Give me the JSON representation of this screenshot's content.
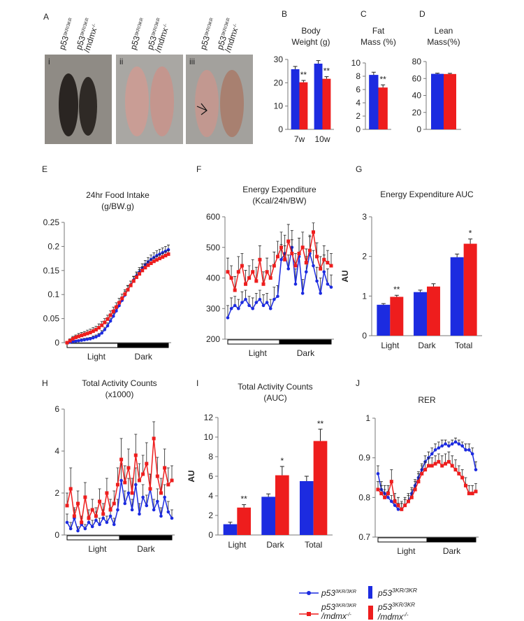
{
  "genotypes": [
    {
      "base": "p53",
      "sup": "3KR/3KR"
    },
    {
      "base": "p53",
      "sup": "3KR/3KR",
      "line2": "/mdmx",
      "line2_sup": "-/-"
    }
  ],
  "photo_panel": {
    "letter": "A",
    "photos": [
      "i",
      "ii",
      "iii"
    ]
  },
  "chart_data": [
    {
      "letter": "B",
      "type": "bar",
      "title": [
        "Body",
        "Weight (g)"
      ],
      "categories": [
        "7w",
        "10w"
      ],
      "series": [
        {
          "color": "#1c2be0",
          "values": [
            25.8,
            28.2
          ],
          "errors": [
            1.2,
            1.3
          ]
        },
        {
          "color": "#ee1d1d",
          "values": [
            20.2,
            21.7
          ],
          "errors": [
            0.8,
            0.9
          ]
        }
      ],
      "significance": [
        "**",
        "**"
      ],
      "ylim": [
        0,
        30
      ],
      "yticks": [
        0,
        10,
        20,
        30
      ]
    },
    {
      "letter": "C",
      "type": "bar",
      "title": [
        "Fat",
        "Mass (%)"
      ],
      "categories": [
        null
      ],
      "series": [
        {
          "color": "#1c2be0",
          "values": [
            8.2
          ],
          "errors": [
            0.4
          ]
        },
        {
          "color": "#ee1d1d",
          "values": [
            6.3
          ],
          "errors": [
            0.4
          ]
        }
      ],
      "significance": [
        "**"
      ],
      "ylim": [
        0,
        10
      ],
      "yticks": [
        0,
        2,
        4,
        6,
        8,
        10
      ]
    },
    {
      "letter": "D",
      "type": "bar",
      "title": [
        "Lean",
        "Mass(%)"
      ],
      "categories": [
        null
      ],
      "series": [
        {
          "color": "#1c2be0",
          "values": [
            65.5
          ],
          "errors": [
            0.8
          ]
        },
        {
          "color": "#ee1d1d",
          "values": [
            65.3
          ],
          "errors": [
            0.8
          ]
        }
      ],
      "ylim": [
        0,
        80
      ],
      "yticks": [
        0,
        20,
        40,
        60,
        80
      ]
    },
    {
      "letter": "E",
      "type": "line",
      "title": [
        "24hr Food Intake",
        "(g/BW.g)"
      ],
      "phase_labels": [
        "Light",
        "Dark"
      ],
      "ylim": [
        0,
        0.25
      ],
      "yticks": [
        0,
        0.05,
        0.1,
        0.15,
        0.2,
        0.25
      ],
      "series": [
        {
          "color": "#1c2be0",
          "marker": "circle",
          "values": [
            0,
            0.001,
            0.002,
            0.003,
            0.004,
            0.005,
            0.006,
            0.007,
            0.008,
            0.01,
            0.012,
            0.015,
            0.02,
            0.027,
            0.035,
            0.045,
            0.055,
            0.066,
            0.077,
            0.088,
            0.099,
            0.11,
            0.12,
            0.13,
            0.139,
            0.147,
            0.155,
            0.162,
            0.168,
            0.173,
            0.177,
            0.181,
            0.184,
            0.187,
            0.19,
            0.193
          ],
          "errors": [
            0.002,
            0.002,
            0.002,
            0.002,
            0.002,
            0.003,
            0.003,
            0.003,
            0.003,
            0.004,
            0.004,
            0.004,
            0.005,
            0.005,
            0.006,
            0.006,
            0.006,
            0.007,
            0.007,
            0.007,
            0.008,
            0.008,
            0.008,
            0.008,
            0.008,
            0.009,
            0.009,
            0.009,
            0.009,
            0.009,
            0.01,
            0.01,
            0.01,
            0.01,
            0.01,
            0.01
          ]
        },
        {
          "color": "#ee1d1d",
          "marker": "square",
          "values": [
            0,
            0.004,
            0.008,
            0.011,
            0.013,
            0.015,
            0.017,
            0.019,
            0.021,
            0.024,
            0.027,
            0.031,
            0.036,
            0.042,
            0.049,
            0.057,
            0.065,
            0.074,
            0.083,
            0.092,
            0.101,
            0.11,
            0.119,
            0.128,
            0.136,
            0.143,
            0.15,
            0.156,
            0.161,
            0.165,
            0.169,
            0.172,
            0.175,
            0.178,
            0.181,
            0.184
          ],
          "errors": [
            0.003,
            0.004,
            0.005,
            0.005,
            0.006,
            0.006,
            0.006,
            0.007,
            0.007,
            0.007,
            0.007,
            0.008,
            0.008,
            0.008,
            0.008,
            0.009,
            0.009,
            0.009,
            0.009,
            0.009,
            0.009,
            0.009,
            0.009,
            0.009,
            0.009,
            0.009,
            0.008,
            0.008,
            0.008,
            0.008,
            0.008,
            0.008,
            0.008,
            0.008,
            0.008,
            0.008
          ]
        }
      ]
    },
    {
      "letter": "F",
      "type": "line",
      "title": [
        "Energy Expenditure",
        "(Kcal/24h/BW)"
      ],
      "phase_labels": [
        "Light",
        "Dark"
      ],
      "ylim": [
        200,
        600
      ],
      "yticks": [
        200,
        300,
        400,
        500,
        600
      ],
      "series": [
        {
          "color": "#1c2be0",
          "marker": "circle",
          "values": [
            270,
            300,
            310,
            300,
            320,
            330,
            310,
            300,
            320,
            330,
            310,
            320,
            300,
            330,
            340,
            460,
            480,
            430,
            500,
            380,
            470,
            350,
            420,
            480,
            440,
            390,
            350,
            420,
            380,
            370
          ],
          "errors": [
            40,
            35,
            30,
            30,
            35,
            30,
            30,
            35,
            30,
            30,
            35,
            30,
            30,
            40,
            35,
            50,
            60,
            45,
            55,
            50,
            60,
            45,
            50,
            55,
            50,
            45,
            50,
            55,
            50,
            40
          ]
        },
        {
          "color": "#ee1d1d",
          "marker": "square",
          "values": [
            420,
            400,
            360,
            420,
            440,
            380,
            400,
            420,
            390,
            460,
            380,
            420,
            400,
            440,
            470,
            500,
            460,
            520,
            480,
            440,
            480,
            500,
            450,
            490,
            550,
            470,
            430,
            460,
            450,
            440
          ],
          "errors": [
            45,
            40,
            45,
            50,
            40,
            45,
            40,
            40,
            45,
            45,
            40,
            45,
            40,
            45,
            50,
            50,
            45,
            55,
            45,
            40,
            50,
            50,
            45,
            50,
            30,
            45,
            40,
            45,
            40,
            40
          ]
        }
      ]
    },
    {
      "letter": "G",
      "type": "bar",
      "title": [
        "Energy Expenditure AUC"
      ],
      "ylabel": "AU",
      "categories": [
        "Light",
        "Dark",
        "Total"
      ],
      "series": [
        {
          "color": "#1c2be0",
          "values": [
            0.78,
            1.1,
            1.98
          ],
          "errors": [
            0.03,
            0.05,
            0.08
          ]
        },
        {
          "color": "#ee1d1d",
          "values": [
            0.98,
            1.24,
            2.32
          ],
          "errors": [
            0.04,
            0.07,
            0.12
          ]
        }
      ],
      "significance": [
        "**",
        null,
        "*"
      ],
      "ylim": [
        0,
        3
      ],
      "yticks": [
        0,
        1,
        2,
        3
      ]
    },
    {
      "letter": "H",
      "type": "line",
      "title": [
        "Total Activity Counts",
        "(x1000)"
      ],
      "phase_labels": [
        "Light",
        "Dark"
      ],
      "ylim": [
        0,
        6
      ],
      "yticks": [
        0,
        2,
        4,
        6
      ],
      "series": [
        {
          "color": "#1c2be0",
          "marker": "circle",
          "values": [
            0.6,
            0.3,
            0.8,
            0.2,
            0.5,
            0.3,
            0.6,
            0.4,
            0.7,
            0.5,
            0.8,
            0.6,
            0.9,
            0.5,
            1.2,
            2.6,
            1.5,
            2.0,
            1.2,
            2.4,
            1.0,
            1.8,
            1.4,
            2.2,
            1.2,
            1.6,
            0.9,
            1.8,
            1.1,
            0.8
          ],
          "errors": [
            0.4,
            0.3,
            0.4,
            0.2,
            0.3,
            0.2,
            0.3,
            0.3,
            0.4,
            0.3,
            0.4,
            0.3,
            0.4,
            0.3,
            0.5,
            0.8,
            0.6,
            0.7,
            0.5,
            0.8,
            0.5,
            0.6,
            0.5,
            0.7,
            0.5,
            0.6,
            0.4,
            0.6,
            0.5,
            0.4
          ]
        },
        {
          "color": "#ee1d1d",
          "marker": "square",
          "values": [
            1.4,
            2.2,
            0.9,
            1.5,
            0.6,
            1.8,
            0.8,
            1.2,
            0.9,
            1.6,
            1.0,
            2.0,
            1.2,
            1.5,
            2.4,
            3.6,
            2.5,
            3.2,
            2.0,
            3.8,
            2.6,
            2.9,
            3.4,
            2.2,
            4.6,
            2.8,
            2.0,
            3.2,
            2.4,
            2.6
          ],
          "errors": [
            0.6,
            1.0,
            0.4,
            0.6,
            0.3,
            0.7,
            0.4,
            0.5,
            0.4,
            0.6,
            0.5,
            0.7,
            0.5,
            0.6,
            0.8,
            1.0,
            0.8,
            0.9,
            0.7,
            1.0,
            0.8,
            0.9,
            1.0,
            0.7,
            0.8,
            0.9,
            0.7,
            0.9,
            0.8,
            0.7
          ]
        }
      ]
    },
    {
      "letter": "I",
      "type": "bar",
      "title": [
        "Total Activity Counts",
        "(AUC)"
      ],
      "ylabel": "AU",
      "categories": [
        "Light",
        "Dark",
        "Total"
      ],
      "series": [
        {
          "color": "#1c2be0",
          "values": [
            1.1,
            3.9,
            5.5
          ],
          "errors": [
            0.2,
            0.3,
            0.5
          ]
        },
        {
          "color": "#ee1d1d",
          "values": [
            2.8,
            6.1,
            9.6
          ],
          "errors": [
            0.3,
            0.9,
            1.2
          ]
        }
      ],
      "significance": [
        "**",
        "*",
        "**"
      ],
      "ylim": [
        0,
        12
      ],
      "yticks": [
        0,
        2,
        4,
        6,
        8,
        10,
        12
      ]
    },
    {
      "letter": "J",
      "type": "line",
      "title": [
        "RER"
      ],
      "phase_labels": [
        "Light",
        "Dark"
      ],
      "ylim": [
        0.7,
        1
      ],
      "yticks": [
        0.7,
        0.8,
        0.9,
        1
      ],
      "series": [
        {
          "color": "#1c2be0",
          "marker": "circle",
          "values": [
            0.86,
            0.82,
            0.81,
            0.8,
            0.79,
            0.78,
            0.77,
            0.77,
            0.78,
            0.79,
            0.81,
            0.83,
            0.85,
            0.87,
            0.89,
            0.9,
            0.91,
            0.92,
            0.925,
            0.93,
            0.935,
            0.93,
            0.935,
            0.94,
            0.935,
            0.93,
            0.92,
            0.92,
            0.91,
            0.87
          ],
          "errors": [
            0.02,
            0.02,
            0.02,
            0.015,
            0.015,
            0.015,
            0.015,
            0.015,
            0.015,
            0.015,
            0.015,
            0.015,
            0.015,
            0.015,
            0.015,
            0.015,
            0.015,
            0.015,
            0.015,
            0.015,
            0.01,
            0.01,
            0.01,
            0.01,
            0.01,
            0.01,
            0.015,
            0.015,
            0.015,
            0.02
          ]
        },
        {
          "color": "#ee1d1d",
          "marker": "square",
          "values": [
            0.82,
            0.81,
            0.8,
            0.81,
            0.84,
            0.79,
            0.78,
            0.77,
            0.78,
            0.79,
            0.8,
            0.82,
            0.84,
            0.86,
            0.87,
            0.88,
            0.88,
            0.885,
            0.89,
            0.88,
            0.885,
            0.89,
            0.88,
            0.87,
            0.86,
            0.85,
            0.83,
            0.81,
            0.81,
            0.815
          ],
          "errors": [
            0.02,
            0.02,
            0.02,
            0.02,
            0.03,
            0.02,
            0.02,
            0.02,
            0.02,
            0.02,
            0.02,
            0.02,
            0.02,
            0.02,
            0.02,
            0.02,
            0.02,
            0.02,
            0.02,
            0.025,
            0.025,
            0.025,
            0.025,
            0.025,
            0.02,
            0.02,
            0.02,
            0.02,
            0.02,
            0.02
          ]
        }
      ]
    }
  ]
}
